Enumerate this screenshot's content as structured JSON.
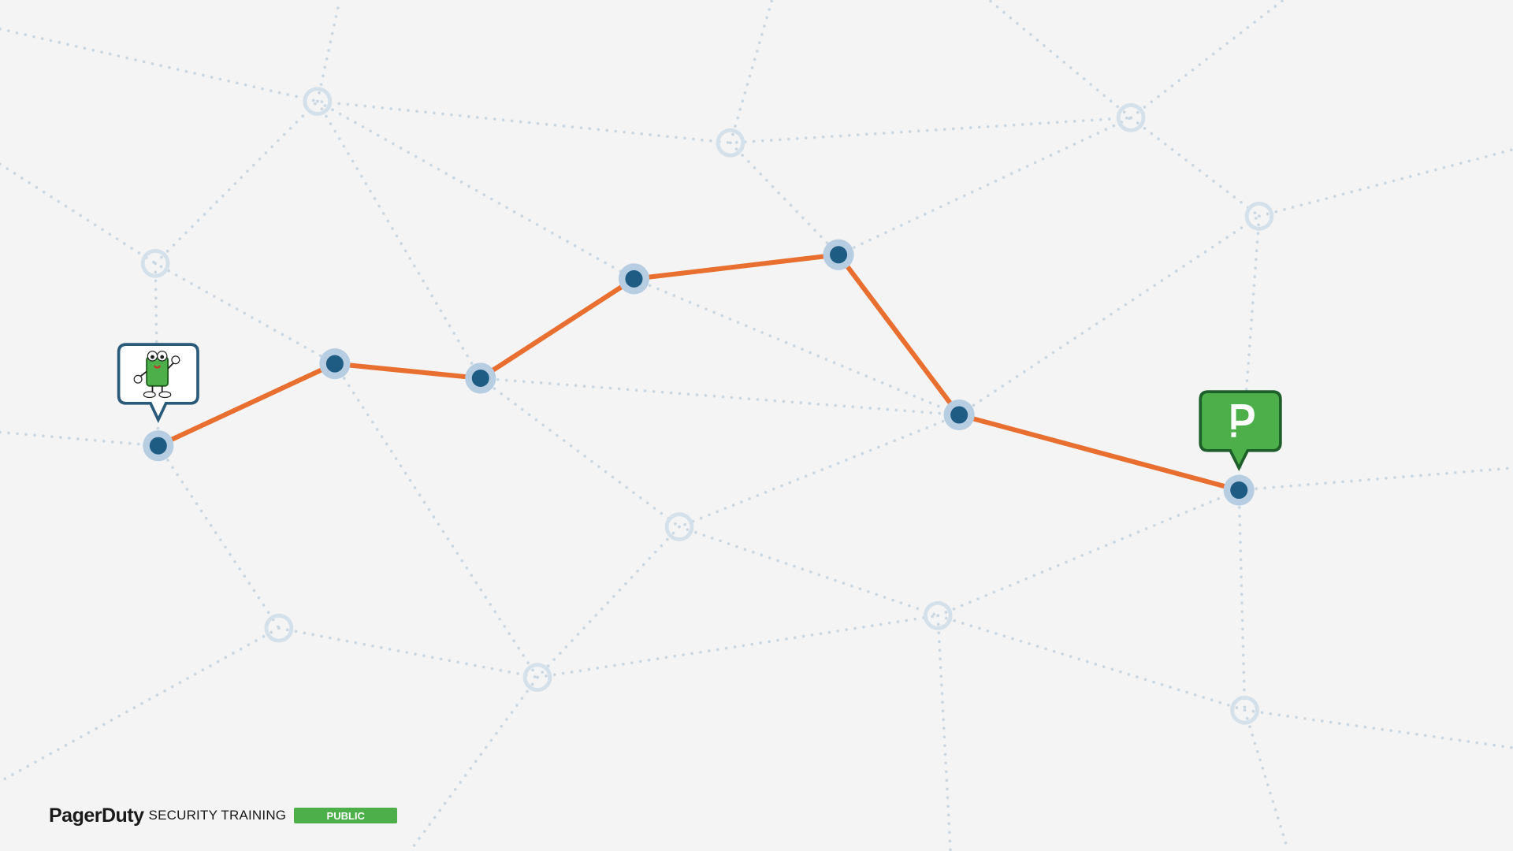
{
  "footer": {
    "brand": "PagerDuty",
    "label": "SECURITY TRAINING",
    "badge": "PUBLIC"
  }
}
